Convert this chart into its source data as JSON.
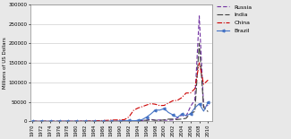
{
  "years": [
    1970,
    1971,
    1972,
    1973,
    1974,
    1975,
    1976,
    1977,
    1978,
    1979,
    1980,
    1981,
    1982,
    1983,
    1984,
    1985,
    1986,
    1987,
    1988,
    1989,
    1990,
    1991,
    1992,
    1993,
    1994,
    1995,
    1996,
    1997,
    1998,
    1999,
    2000,
    2001,
    2002,
    2003,
    2004,
    2005,
    2006,
    2007,
    2008,
    2009,
    2010
  ],
  "russia": [
    0,
    0,
    0,
    0,
    0,
    0,
    0,
    0,
    0,
    0,
    0,
    0,
    0,
    0,
    0,
    0,
    0,
    0,
    0,
    0,
    0,
    0,
    700,
    700,
    640,
    2066,
    2579,
    4865,
    2761,
    3309,
    2714,
    2748,
    3461,
    7958,
    15444,
    12886,
    37595,
    55073,
    270000,
    36500,
    41194
  ],
  "india": [
    0,
    0,
    0,
    0,
    0,
    0,
    0,
    0,
    0,
    0,
    0,
    0,
    0,
    0,
    0,
    0,
    0,
    0,
    0,
    0,
    237,
    155,
    233,
    586,
    1314,
    2151,
    2525,
    3619,
    2633,
    2169,
    3585,
    5472,
    5627,
    4321,
    5778,
    7622,
    20328,
    25127,
    200000,
    35632,
    24640
  ],
  "china": [
    0,
    0,
    0,
    0,
    0,
    0,
    0,
    0,
    0,
    0,
    57,
    265,
    430,
    636,
    1258,
    1659,
    1875,
    2314,
    3194,
    3393,
    3487,
    4366,
    11156,
    27515,
    33787,
    37521,
    41726,
    45257,
    43751,
    40319,
    40715,
    46878,
    52743,
    53505,
    60630,
    72406,
    72715,
    83521,
    150000,
    95000,
    105735
  ],
  "brazil": [
    0,
    0,
    0,
    0,
    0,
    0,
    0,
    0,
    0,
    0,
    0,
    0,
    0,
    0,
    0,
    0,
    0,
    0,
    0,
    0,
    989,
    1102,
    2061,
    1291,
    2150,
    4405,
    10792,
    18993,
    28856,
    28578,
    32779,
    22457,
    16590,
    10144,
    18146,
    15066,
    18822,
    34585,
    45058,
    25949,
    48462
  ],
  "russia_color": "#7030A0",
  "india_color": "#404040",
  "china_color": "#CC0000",
  "brazil_color": "#4472C4",
  "ylabel": "Millions of US Dollars",
  "ylim": [
    0,
    300000
  ],
  "yticks": [
    0,
    50000,
    100000,
    150000,
    200000,
    250000,
    300000
  ],
  "ytick_labels": [
    "0",
    "50000",
    "100000",
    "150000",
    "200000",
    "250000",
    "300000"
  ],
  "bg_color": "#e8e8e8",
  "plot_bg": "#ffffff",
  "grid_color": "#d0d0d0"
}
